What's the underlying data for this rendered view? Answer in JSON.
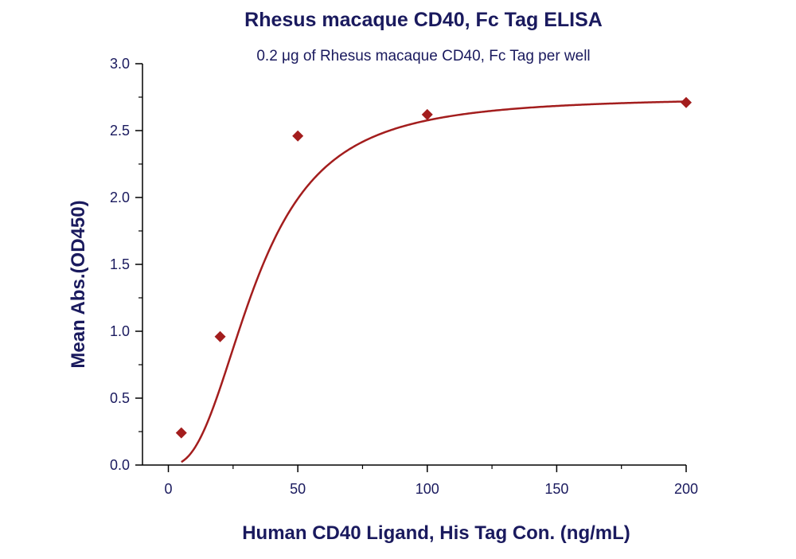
{
  "chart_data": {
    "type": "scatter",
    "title": "Rhesus macaque CD40, Fc Tag ELISA",
    "subtitle": "0.2 μg of Rhesus macaque CD40, Fc Tag per well",
    "xlabel": "Human CD40 Ligand, His Tag Con. (ng/mL)",
    "ylabel": "Mean Abs.(OD450)",
    "xlim": [
      -10,
      200
    ],
    "ylim": [
      0,
      3.0
    ],
    "x_ticks": [
      "0",
      "50",
      "100",
      "150",
      "200"
    ],
    "y_ticks": [
      "0.0",
      "0.5",
      "1.0",
      "1.5",
      "2.0",
      "2.5",
      "3.0"
    ],
    "grid": false,
    "series": [
      {
        "x": [
          5,
          20,
          50,
          100,
          200
        ],
        "y": [
          0.24,
          0.96,
          2.46,
          2.62,
          2.71
        ],
        "marker": "diamond",
        "fit": "four-parameter logistic"
      }
    ],
    "colors": {
      "text": "#1a1a5e",
      "series": "#a31d1d",
      "axis": "#000000"
    }
  }
}
